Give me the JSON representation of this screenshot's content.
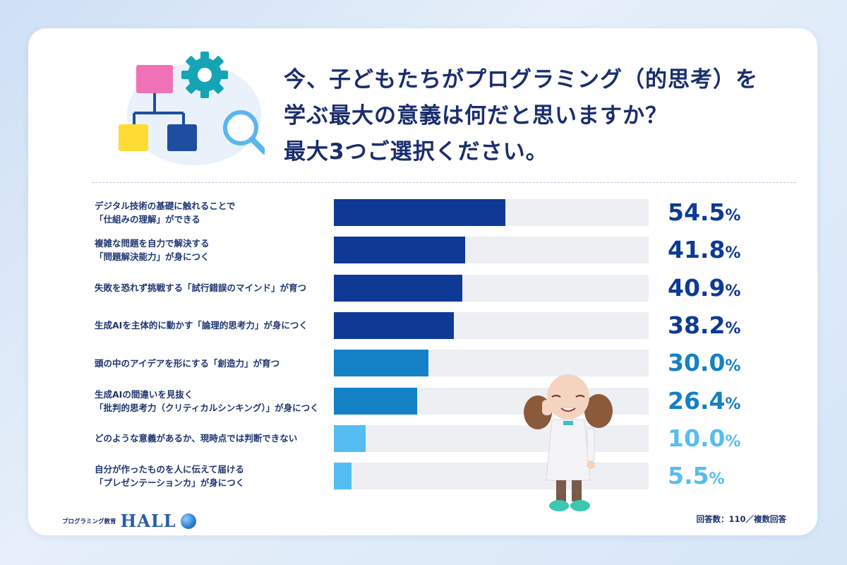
{
  "question": {
    "line1": "今、子どもたちがプログラミング（的思考）を",
    "line2": "学ぶ最大の意義は何だと思いますか？",
    "line3": "最大3つご選択ください。"
  },
  "chart_data": {
    "type": "bar",
    "orientation": "horizontal",
    "categories": [
      [
        "デジタル技術の基礎に触れることで",
        "「仕組みの理解」ができる"
      ],
      [
        "複雑な問題を自力で解決する",
        "「問題解決能力」が身につく"
      ],
      [
        "失敗を恐れず挑戦する「試行錯誤のマインド」が育つ"
      ],
      [
        "生成AIを主体的に動かす「論理的思考力」が身につく"
      ],
      [
        "頭の中のアイデアを形にする「創造力」が育つ"
      ],
      [
        "生成AIの間違いを見抜く",
        "「批判的思考力（クリティカルシンキング）」が身につく"
      ],
      [
        "どのような意義があるか、現時点では判断できない"
      ],
      [
        "自分が作ったものを人に伝えて届ける",
        "「プレゼンテーションカ」が身につく"
      ]
    ],
    "values": [
      54.5,
      41.8,
      40.9,
      38.2,
      30.0,
      26.4,
      10.0,
      5.5
    ],
    "value_labels": [
      "54.5",
      "41.8",
      "40.9",
      "38.2",
      "30.0",
      "26.4",
      "10.0",
      "5.5"
    ],
    "unit": "%",
    "colors": [
      "#0e3a96",
      "#0e3a96",
      "#0e3a96",
      "#0e3a96",
      "#1480c6",
      "#1480c6",
      "#56bdf2",
      "#56bdf2"
    ],
    "xlim": [
      0,
      100
    ]
  },
  "brand": {
    "small": "プログラミング教育",
    "logo": "HALL"
  },
  "footnote": "回答数：110／複数回答"
}
